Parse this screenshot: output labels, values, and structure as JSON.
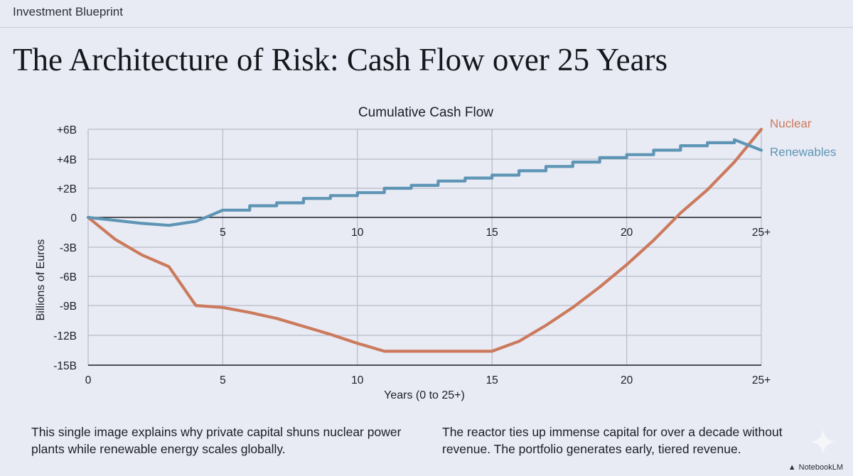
{
  "header": {
    "label": "Investment Blueprint"
  },
  "title": "The Architecture of Risk: Cash Flow over 25 Years",
  "captions": {
    "left": "This single image explains why private capital shuns nuclear power plants while renewable energy scales globally.",
    "right": "The reactor ties up immense capital for over a decade without revenue. The portfolio generates early, tiered revenue."
  },
  "brand": {
    "name": "NotebookLM",
    "icon": "notebooklm-logo-icon"
  },
  "colors": {
    "background": "#e8ebf4",
    "nuclear": "#cc7a5d",
    "renewables": "#5e95b5",
    "grid": "#b6bbc7"
  },
  "chart_data": {
    "type": "line",
    "title": "Cumulative Cash Flow",
    "xlabel": "Years (0 to 25+)",
    "ylabel": "Billions of Euros",
    "xlim": [
      0,
      25
    ],
    "x_ticks": [
      {
        "v": 0,
        "label": "0"
      },
      {
        "v": 5,
        "label": "5"
      },
      {
        "v": 10,
        "label": "10"
      },
      {
        "v": 15,
        "label": "15"
      },
      {
        "v": 20,
        "label": "20"
      },
      {
        "v": 25,
        "label": "25+"
      }
    ],
    "zero_axis_ticks": [
      {
        "v": 5,
        "label": "5"
      },
      {
        "v": 10,
        "label": "10"
      },
      {
        "v": 15,
        "label": "15"
      },
      {
        "v": 20,
        "label": "20"
      },
      {
        "v": 25,
        "label": "25+"
      }
    ],
    "y_ticks": [
      "+6B",
      "+4B",
      "+2B",
      "0",
      "-3B",
      "-6B",
      "-9B",
      "-12B",
      "-15B"
    ],
    "y_values": [
      6,
      4,
      2,
      0,
      -3,
      -6,
      -9,
      -12,
      -15
    ],
    "grid": true,
    "legend": "right, inline labels",
    "series": [
      {
        "name": "Nuclear",
        "color": "#cc7a5d",
        "points": [
          [
            0,
            0
          ],
          [
            1,
            -2.2
          ],
          [
            2,
            -3.8
          ],
          [
            3,
            -5.0
          ],
          [
            4,
            -9.0
          ],
          [
            5,
            -9.2
          ],
          [
            6,
            -9.7
          ],
          [
            7,
            -10.3
          ],
          [
            8,
            -11.1
          ],
          [
            9,
            -11.9
          ],
          [
            10,
            -12.8
          ],
          [
            11,
            -13.6
          ],
          [
            12,
            -13.6
          ],
          [
            13,
            -13.6
          ],
          [
            14,
            -13.6
          ],
          [
            15,
            -13.6
          ],
          [
            16,
            -12.6
          ],
          [
            17,
            -11.0
          ],
          [
            18,
            -9.2
          ],
          [
            19,
            -7.1
          ],
          [
            20,
            -4.8
          ],
          [
            21,
            -2.3
          ],
          [
            22,
            0.3
          ],
          [
            23,
            1.9
          ],
          [
            24,
            3.8
          ],
          [
            25,
            6.0
          ]
        ]
      },
      {
        "name": "Renewables",
        "color": "#5e95b5",
        "points": [
          [
            0,
            0
          ],
          [
            1,
            -0.3
          ],
          [
            2,
            -0.6
          ],
          [
            3,
            -0.8
          ],
          [
            4,
            -0.4
          ],
          [
            4.5,
            0.1
          ],
          [
            5,
            0.5
          ],
          [
            6,
            0.5
          ],
          [
            6,
            0.8
          ],
          [
            7,
            0.8
          ],
          [
            7,
            1.0
          ],
          [
            8,
            1.0
          ],
          [
            8,
            1.3
          ],
          [
            9,
            1.3
          ],
          [
            9,
            1.5
          ],
          [
            10,
            1.5
          ],
          [
            10,
            1.7
          ],
          [
            11,
            1.7
          ],
          [
            11,
            2.0
          ],
          [
            12,
            2.0
          ],
          [
            12,
            2.2
          ],
          [
            13,
            2.2
          ],
          [
            13,
            2.5
          ],
          [
            14,
            2.5
          ],
          [
            14,
            2.7
          ],
          [
            15,
            2.7
          ],
          [
            15,
            2.9
          ],
          [
            16,
            2.9
          ],
          [
            16,
            3.2
          ],
          [
            17,
            3.2
          ],
          [
            17,
            3.5
          ],
          [
            18,
            3.5
          ],
          [
            18,
            3.8
          ],
          [
            19,
            3.8
          ],
          [
            19,
            4.1
          ],
          [
            20,
            4.1
          ],
          [
            20,
            4.3
          ],
          [
            21,
            4.3
          ],
          [
            21,
            4.6
          ],
          [
            22,
            4.6
          ],
          [
            22,
            4.9
          ],
          [
            23,
            4.9
          ],
          [
            23,
            5.1
          ],
          [
            24,
            5.1
          ],
          [
            24,
            5.3
          ],
          [
            25,
            4.6
          ]
        ]
      }
    ]
  }
}
